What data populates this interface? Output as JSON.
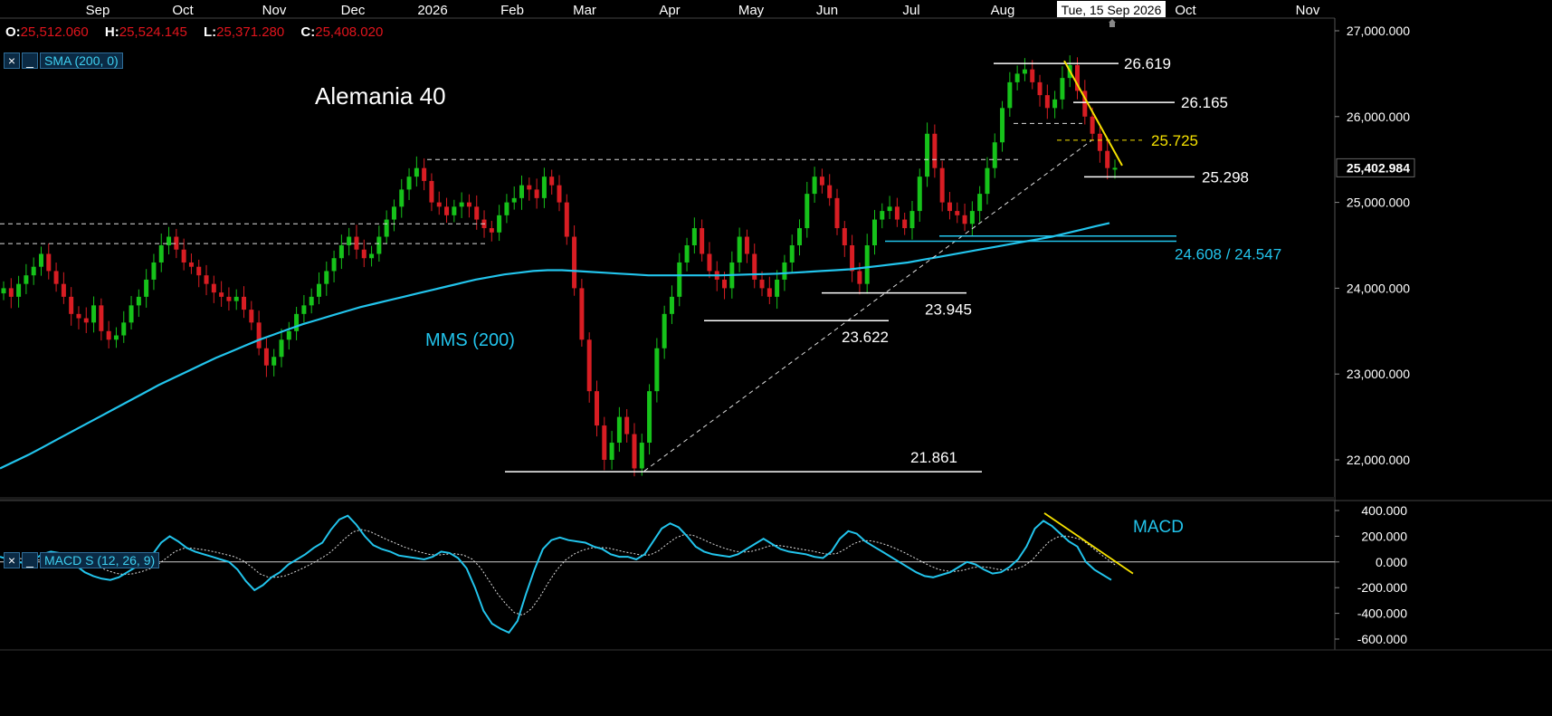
{
  "chart_data": [
    {
      "type": "candlestick",
      "title": "Alemania 40",
      "x_axis_labels": [
        "Sep",
        "Oct",
        "Nov",
        "Dec",
        "2026",
        "Feb",
        "Mar",
        "Apr",
        "May",
        "Jun",
        "Jul",
        "Aug",
        "Oct",
        "Nov"
      ],
      "cursor_date": "Tue, 15 Sep 2026",
      "ohlc": {
        "O": "25,512.060",
        "H": "25,524.145",
        "L": "25,371.280",
        "C": "25,408.020"
      },
      "indicator_label": "SMA (200, 0)",
      "y_ticks": [
        "27,000.000",
        "26,000.000",
        "25,000.000",
        "24,000.000",
        "23,000.000",
        "22,000.000"
      ],
      "ylim": [
        21600,
        27100
      ],
      "last_price": "25,402.984",
      "annotations": [
        {
          "text": "26.619",
          "value": 26619
        },
        {
          "text": "26.165",
          "value": 26165
        },
        {
          "text": "25.725",
          "value": 25725
        },
        {
          "text": "25.298",
          "value": 25298
        },
        {
          "text": "24.608 / 24.547",
          "values": [
            24608,
            24547
          ]
        },
        {
          "text": "23.945",
          "value": 23945
        },
        {
          "text": "23.622",
          "value": 23622
        },
        {
          "text": "21.861",
          "value": 21861
        }
      ],
      "sma_label": "MMS (200)",
      "colors": {
        "up": "#16c21a",
        "down": "#d81d23",
        "sma": "#22c4ec",
        "trend": "#f5e100"
      },
      "close_series": [
        24000,
        23900,
        24050,
        24150,
        24250,
        24400,
        24200,
        24050,
        23900,
        23700,
        23650,
        23600,
        23800,
        23500,
        23400,
        23450,
        23600,
        23800,
        23900,
        24100,
        24300,
        24500,
        24600,
        24450,
        24300,
        24250,
        24150,
        24050,
        23950,
        23900,
        23850,
        23900,
        23750,
        23600,
        23300,
        23100,
        23200,
        23400,
        23500,
        23700,
        23800,
        23900,
        24050,
        24200,
        24350,
        24500,
        24600,
        24450,
        24350,
        24400,
        24600,
        24800,
        24950,
        25150,
        25300,
        25400,
        25250,
        25000,
        24950,
        24850,
        24950,
        25000,
        24950,
        24800,
        24700,
        24650,
        24850,
        25000,
        25050,
        25200,
        25150,
        25050,
        25300,
        25200,
        25000,
        24600,
        24000,
        23400,
        22800,
        22400,
        22000,
        22200,
        22500,
        22300,
        21900,
        22200,
        22800,
        23300,
        23700,
        23900,
        24300,
        24500,
        24700,
        24400,
        24200,
        24100,
        24000,
        24300,
        24600,
        24400,
        24100,
        24000,
        23900,
        24100,
        24300,
        24500,
        24700,
        25100,
        25300,
        25200,
        25050,
        24700,
        24500,
        24200,
        24050,
        24500,
        24800,
        24900,
        24950,
        24800,
        24700,
        24900,
        25300,
        25800,
        25400,
        25000,
        24900,
        24850,
        24750,
        24900,
        25100,
        25400,
        25700,
        26100,
        26400,
        26500,
        26550,
        26400,
        26250,
        26100,
        26200,
        26450,
        26600,
        26300,
        26000,
        25800,
        25600,
        25400,
        25403
      ],
      "sma_series": [
        21900,
        21980,
        22060,
        22150,
        22240,
        22330,
        22420,
        22510,
        22600,
        22690,
        22780,
        22870,
        22950,
        23030,
        23110,
        23190,
        23260,
        23330,
        23400,
        23460,
        23520,
        23580,
        23630,
        23680,
        23730,
        23780,
        23820,
        23860,
        23900,
        23940,
        23980,
        24020,
        24060,
        24100,
        24130,
        24160,
        24180,
        24200,
        24210,
        24210,
        24200,
        24190,
        24180,
        24170,
        24160,
        24150,
        24150,
        24150,
        24150,
        24150,
        24150,
        24155,
        24160,
        24165,
        24170,
        24180,
        24190,
        24200,
        24210,
        24220,
        24240,
        24260,
        24280,
        24300,
        24330,
        24360,
        24390,
        24420,
        24450,
        24480,
        24510,
        24540,
        24570,
        24600,
        24640,
        24680,
        24720,
        24760
      ],
      "trend_segments": "drawn"
    },
    {
      "type": "line",
      "indicator_label": "MACD S (12, 26, 9)",
      "label": "MACD",
      "y_ticks": [
        "400.000",
        "200.000",
        "0.000",
        "-200.000",
        "-400.000",
        "-600.000"
      ],
      "ylim": [
        -620,
        450
      ],
      "macd": [
        40,
        20,
        0,
        -10,
        20,
        60,
        80,
        70,
        30,
        -30,
        -80,
        -110,
        -130,
        -140,
        -120,
        -80,
        -40,
        0,
        60,
        150,
        200,
        160,
        110,
        80,
        60,
        40,
        20,
        0,
        -60,
        -150,
        -220,
        -180,
        -120,
        -80,
        -20,
        20,
        60,
        110,
        150,
        250,
        330,
        360,
        290,
        200,
        130,
        100,
        80,
        50,
        40,
        30,
        20,
        40,
        80,
        70,
        30,
        -50,
        -200,
        -380,
        -480,
        -520,
        -550,
        -460,
        -250,
        -60,
        100,
        170,
        190,
        170,
        160,
        150,
        120,
        100,
        60,
        40,
        40,
        20,
        60,
        160,
        260,
        300,
        270,
        200,
        120,
        80,
        60,
        50,
        40,
        60,
        100,
        140,
        180,
        140,
        100,
        80,
        70,
        60,
        40,
        30,
        80,
        180,
        240,
        220,
        160,
        120,
        80,
        40,
        0,
        -40,
        -80,
        -110,
        -120,
        -100,
        -80,
        -40,
        0,
        -20,
        -60,
        -90,
        -80,
        -40,
        20,
        120,
        260,
        320,
        280,
        220,
        160,
        120,
        0,
        -60,
        -100,
        -140
      ]
    }
  ]
}
